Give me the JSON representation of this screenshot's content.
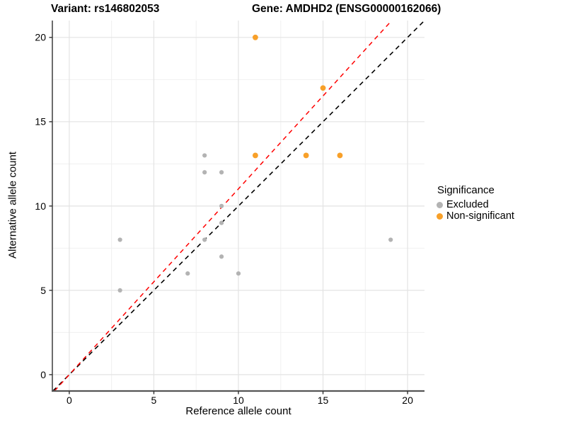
{
  "header": {
    "variant_title": "Variant: rs146802053",
    "gene_title": "Gene: AMDHD2 (ENSG00000162066)"
  },
  "axes": {
    "x": {
      "label": "Reference allele count",
      "ticks": [
        0,
        5,
        10,
        15,
        20
      ],
      "minor_ticks": [
        2.5,
        7.5,
        12.5,
        17.5
      ],
      "range": [
        -1,
        21
      ]
    },
    "y": {
      "label": "Alternative allele count",
      "ticks": [
        0,
        5,
        10,
        15,
        20
      ],
      "minor_ticks": [
        2.5,
        7.5,
        12.5,
        17.5
      ],
      "range": [
        -0.97,
        21
      ]
    }
  },
  "legend": {
    "title": "Significance",
    "items": [
      {
        "label": "Excluded",
        "color": "#b3b3b3"
      },
      {
        "label": "Non-significant",
        "color": "#f8a029"
      }
    ]
  },
  "style": {
    "major_grid_color": "#e3e3e3",
    "minor_grid_color": "#f0f0f0",
    "axis_line_color": "#3c3c3c",
    "tick_color": "#333333",
    "tick_label_color": "#000000"
  },
  "chart_data": {
    "type": "scatter",
    "title": "Variant: rs146802053   Gene: AMDHD2 (ENSG00000162066)",
    "xlabel": "Reference allele count",
    "ylabel": "Alternative allele count",
    "xlim": [
      -1,
      21
    ],
    "ylim": [
      -1,
      21
    ],
    "grid": true,
    "legend_position": "right",
    "series": [
      {
        "name": "Excluded",
        "color": "#b3b3b3",
        "radius": 3.1,
        "points": [
          [
            3,
            8
          ],
          [
            3,
            5
          ],
          [
            7,
            6
          ],
          [
            8,
            8
          ],
          [
            8,
            12
          ],
          [
            8,
            13
          ],
          [
            9,
            7
          ],
          [
            9,
            9
          ],
          [
            9,
            10
          ],
          [
            9,
            12
          ],
          [
            10,
            6
          ],
          [
            19,
            8
          ]
        ]
      },
      {
        "name": "Non-significant",
        "color": "#f8a029",
        "radius": 3.9,
        "points": [
          [
            11,
            20
          ],
          [
            15,
            17
          ],
          [
            11,
            13
          ],
          [
            14,
            13
          ],
          [
            16,
            13
          ]
        ]
      }
    ],
    "ref_lines": [
      {
        "name": "identity-line",
        "color": "#000000",
        "width": 1.6,
        "dash": "6.5 5.5",
        "points": [
          [
            -0.97,
            -0.97
          ],
          [
            21,
            21
          ]
        ]
      },
      {
        "name": "expected-line",
        "color": "#ff0000",
        "width": 1.5,
        "dash": "6.5 5.5",
        "points": [
          [
            -0.88,
            -0.97
          ],
          [
            19.06,
            21
          ]
        ]
      }
    ]
  }
}
